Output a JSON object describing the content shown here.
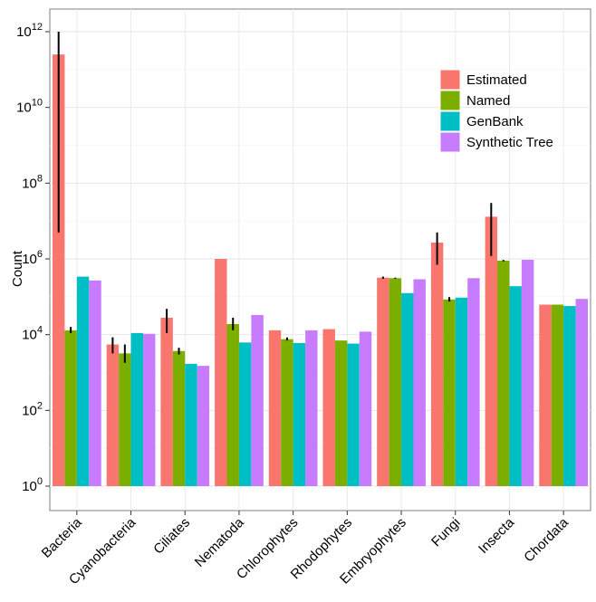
{
  "chart_data": {
    "type": "bar",
    "ylabel": "Count",
    "yscale": "log10",
    "ylim": [
      1,
      10000000000000
    ],
    "yticks": [
      {
        "value": 1,
        "exp": "0"
      },
      {
        "value": 100,
        "exp": "2"
      },
      {
        "value": 10000,
        "exp": "4"
      },
      {
        "value": 1000000,
        "exp": "6"
      },
      {
        "value": 100000000,
        "exp": "8"
      },
      {
        "value": 10000000000,
        "exp": "10"
      },
      {
        "value": 1000000000000,
        "exp": "12"
      }
    ],
    "ytick_base": "10",
    "grid": true,
    "legend_position": "top-right",
    "categories": [
      "Bacteria",
      "Cyanobacteria",
      "Ciliates",
      "Nematoda",
      "Chlorophytes",
      "Rhodophytes",
      "Embryophytes",
      "Fungi",
      "Insecta",
      "Chordata"
    ],
    "series": [
      {
        "name": "Estimated",
        "color": "#F8766D",
        "values": [
          250000000000,
          5500,
          28000,
          1000000,
          13000,
          14000,
          320000,
          2700000,
          13000000,
          62000
        ],
        "error": [
          [
            5000000,
            1000000000000
          ],
          [
            3200,
            8500
          ],
          [
            11000,
            48000
          ],
          null,
          null,
          null,
          [
            300000,
            340000
          ],
          [
            700000,
            5000000
          ],
          [
            1200000,
            30000000
          ],
          null
        ]
      },
      {
        "name": "Named",
        "color": "#7CAE00",
        "values": [
          13000,
          3200,
          3700,
          19000,
          7600,
          7000,
          310000,
          85000,
          900000,
          62000
        ],
        "error": [
          [
            11000,
            16000
          ],
          [
            1800,
            5500
          ],
          [
            3000,
            4500
          ],
          [
            13000,
            28000
          ],
          [
            7000,
            8400
          ],
          null,
          [
            300000,
            320000
          ],
          [
            75000,
            98000
          ],
          [
            860000,
            940000
          ],
          null
        ]
      },
      {
        "name": "GenBank",
        "color": "#00BFC4",
        "values": [
          340000,
          11000,
          1700,
          6200,
          6000,
          5800,
          125000,
          95000,
          190000,
          57000
        ],
        "error": null
      },
      {
        "name": "Synthetic Tree",
        "color": "#C77CFF",
        "values": [
          270000,
          10500,
          1500,
          33000,
          13000,
          12000,
          290000,
          310000,
          950000,
          88000
        ],
        "error": null
      }
    ]
  }
}
